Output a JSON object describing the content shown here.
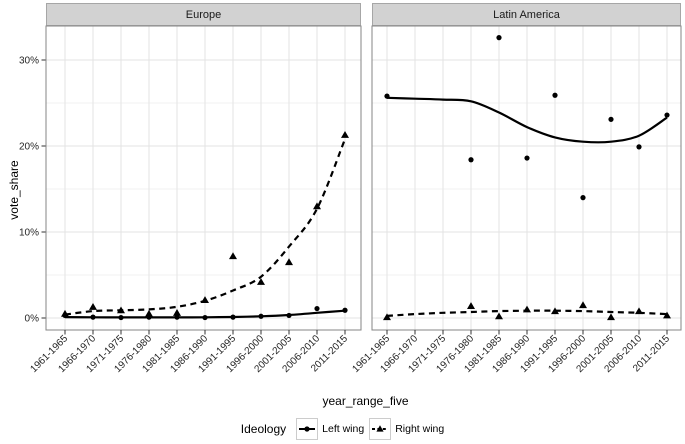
{
  "figure": {
    "y_label": "vote_share",
    "x_label": "year_range_five",
    "facets": [
      "Europe",
      "Latin America"
    ],
    "y_tick_labels": [
      "0%",
      "10%",
      "20%",
      "30%"
    ],
    "y_tick_values": [
      0,
      10,
      20,
      30
    ],
    "y_minor_values": [
      5,
      15,
      25
    ],
    "legend": {
      "title": "Ideology",
      "items": [
        {
          "label": "Left wing",
          "marker": "circle",
          "linetype": "solid"
        },
        {
          "label": "Right wing",
          "marker": "triangle",
          "linetype": "dashed"
        }
      ]
    },
    "colors": {
      "data": "#000000",
      "strip_bg": "#d2d2d2",
      "strip_border": "#a6a6a6",
      "panel_border": "#858585",
      "grid_major": "#e3e3e3",
      "grid_minor": "#f1f1f1",
      "tick": "#333333",
      "tick_text": "#262626"
    }
  },
  "chart_data": {
    "type": "line",
    "title": "",
    "xlabel": "year_range_five",
    "ylabel": "vote_share",
    "ylim": [
      -1.3,
      34
    ],
    "yticks": [
      0,
      10,
      20,
      30
    ],
    "grid": true,
    "legend_position": "bottom",
    "categories": [
      "1961-1965",
      "1966-1970",
      "1971-1975",
      "1976-1980",
      "1981-1985",
      "1986-1990",
      "1991-1995",
      "1996-2000",
      "2001-2005",
      "2006-2010",
      "2011-2015"
    ],
    "facets": [
      {
        "title": "Europe",
        "series": [
          {
            "name": "Left wing",
            "marker": "circle",
            "linetype": "solid",
            "points_pct": [
              0.3,
              0.1,
              0.05,
              0.1,
              0.1,
              0.05,
              0.1,
              0.2,
              0.3,
              1.1,
              0.9
            ],
            "trend_pct": [
              0.1,
              0.08,
              0.07,
              0.07,
              0.07,
              0.08,
              0.12,
              0.2,
              0.35,
              0.6,
              0.85
            ]
          },
          {
            "name": "Right wing",
            "marker": "triangle",
            "linetype": "dashed",
            "points_pct": [
              0.5,
              1.3,
              0.9,
              0.5,
              0.6,
              2.1,
              7.2,
              4.2,
              6.5,
              13.0,
              21.3
            ],
            "trend_pct": [
              0.4,
              0.8,
              0.9,
              1.0,
              1.3,
              2.0,
              3.2,
              4.8,
              8.3,
              12.7,
              20.8
            ]
          }
        ]
      },
      {
        "title": "Latin America",
        "series": [
          {
            "name": "Left wing",
            "marker": "circle",
            "linetype": "solid",
            "points_pct": [
              25.8,
              null,
              null,
              18.4,
              32.6,
              18.6,
              25.9,
              14.0,
              23.1,
              19.9,
              23.6
            ],
            "trend_pct": [
              25.6,
              25.5,
              25.4,
              25.2,
              23.9,
              22.2,
              21.0,
              20.5,
              20.5,
              21.2,
              23.3
            ]
          },
          {
            "name": "Right wing",
            "marker": "triangle",
            "linetype": "dashed",
            "points_pct": [
              0.1,
              null,
              null,
              1.4,
              0.2,
              1.0,
              0.8,
              1.5,
              0.1,
              0.8,
              0.3
            ],
            "trend_pct": [
              0.25,
              0.45,
              0.6,
              0.7,
              0.8,
              0.85,
              0.85,
              0.8,
              0.7,
              0.6,
              0.45
            ]
          }
        ]
      }
    ]
  }
}
